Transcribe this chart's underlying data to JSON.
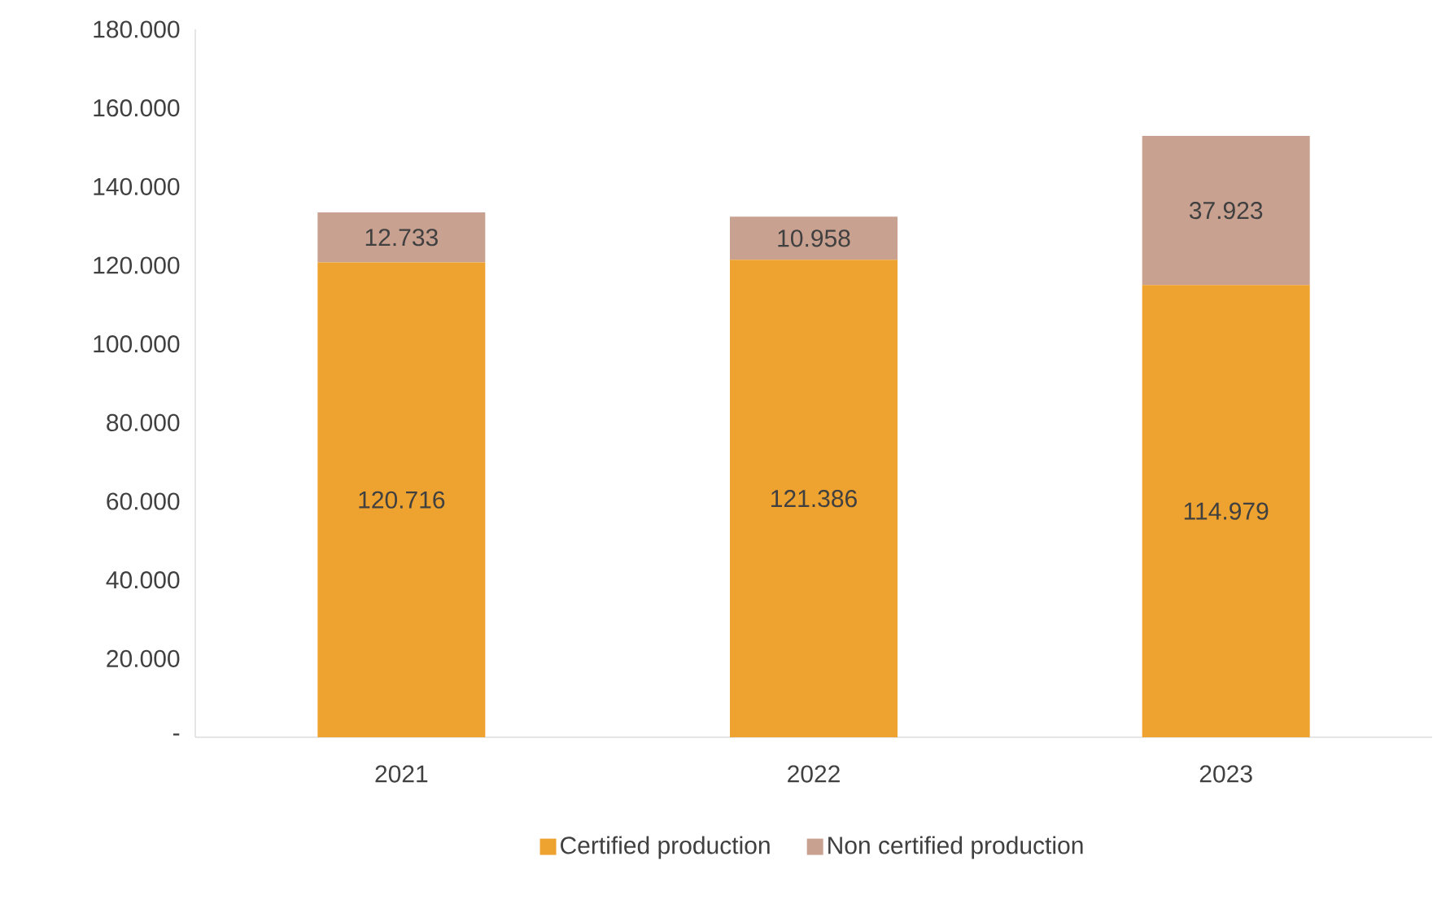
{
  "chart_data": {
    "type": "bar",
    "stacked": true,
    "categories": [
      "2021",
      "2022",
      "2023"
    ],
    "series": [
      {
        "name": "Certified production",
        "color": "#eea22f",
        "values": [
          120716,
          121386,
          114979
        ],
        "value_labels": [
          "120.716",
          "121.386",
          "114.979"
        ]
      },
      {
        "name": "Non certified production",
        "color": "#c9a190",
        "values": [
          12733,
          10958,
          37923
        ],
        "value_labels": [
          "12.733",
          "10.958",
          "37.923"
        ]
      }
    ],
    "ylim": [
      0,
      180000
    ],
    "yticks": [
      {
        "value": 0,
        "label": "-"
      },
      {
        "value": 20000,
        "label": "20.000"
      },
      {
        "value": 40000,
        "label": "40.000"
      },
      {
        "value": 60000,
        "label": "60.000"
      },
      {
        "value": 80000,
        "label": "80.000"
      },
      {
        "value": 100000,
        "label": "100.000"
      },
      {
        "value": 120000,
        "label": "120.000"
      },
      {
        "value": 140000,
        "label": "140.000"
      },
      {
        "value": 160000,
        "label": "160.000"
      },
      {
        "value": 180000,
        "label": "180.000"
      }
    ],
    "grid": false,
    "legend": "bottom"
  }
}
